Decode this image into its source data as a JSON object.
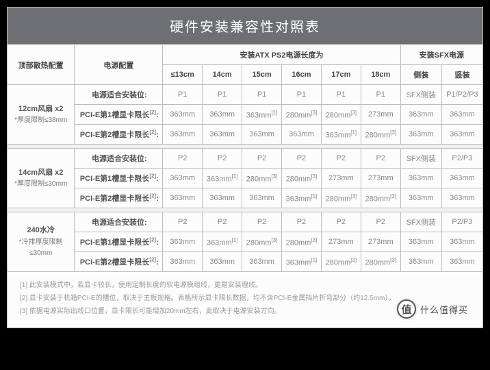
{
  "title": "硬件安装兼容性对照表",
  "headers": {
    "top_config": "顶部散热配置",
    "psu_config": "电源配置",
    "atx_group": "安装ATX PS2电源长度为",
    "sfx_group": "安装SFX电源",
    "atx_cols": [
      "≤13cm",
      "14cm",
      "15cm",
      "16cm",
      "17cm",
      "18cm"
    ],
    "sfx_cols": [
      "侧装",
      "竖装"
    ]
  },
  "row_labels": {
    "psu_fit": "电源适合安装位:",
    "pcie1": "PCI-E第1槽显卡限长",
    "pcie2": "PCI-E第2槽显卡限长",
    "note2": "[2]",
    "colon": ":"
  },
  "sections": [
    {
      "head_main": "12cm风扇 x2",
      "head_sub": "*厚度限制≤38mm",
      "psu_fit": [
        "P1",
        "P1",
        "P1",
        "P1",
        "P1",
        "P1",
        "SFX侧装",
        "P1/P2/P3"
      ],
      "pcie1": [
        [
          "363mm",
          ""
        ],
        [
          "363mm",
          ""
        ],
        [
          "363mm",
          "[1]"
        ],
        [
          "280mm",
          "[3]"
        ],
        [
          "280mm",
          "[3]"
        ],
        [
          "273mm",
          ""
        ],
        [
          "363mm",
          ""
        ],
        [
          "363mm",
          ""
        ]
      ],
      "pcie2": [
        [
          "363mm",
          ""
        ],
        [
          "363mm",
          ""
        ],
        [
          "363mm",
          ""
        ],
        [
          "363mm",
          ""
        ],
        [
          "363mm",
          "[1]"
        ],
        [
          "280mm",
          "[3]"
        ],
        [
          "363mm",
          ""
        ],
        [
          "363mm",
          ""
        ]
      ]
    },
    {
      "head_main": "14cm风扇 x2",
      "head_sub": "*厚度限制≤30mm",
      "psu_fit": [
        "P2",
        "P2",
        "P2",
        "P2",
        "P2",
        "P2",
        "SFX侧装",
        "P2/P3"
      ],
      "pcie1": [
        [
          "363mm",
          ""
        ],
        [
          "363mm",
          "[1]"
        ],
        [
          "280mm",
          "[3]"
        ],
        [
          "280mm",
          "[3]"
        ],
        [
          "273mm",
          ""
        ],
        [
          "273mm",
          ""
        ],
        [
          "363mm",
          ""
        ],
        [
          "363mm",
          ""
        ]
      ],
      "pcie2": [
        [
          "363mm",
          ""
        ],
        [
          "363mm",
          ""
        ],
        [
          "363mm",
          ""
        ],
        [
          "363mm",
          "[1]"
        ],
        [
          "280mm",
          "[3]"
        ],
        [
          "280mm",
          "[3]"
        ],
        [
          "363mm",
          ""
        ],
        [
          "363mm",
          ""
        ]
      ]
    },
    {
      "head_main": "240水冷",
      "head_sub": "*冷排厚度限制≤30mm",
      "psu_fit": [
        "P2",
        "P2",
        "P2",
        "P2",
        "P2",
        "P2",
        "SFX侧装",
        "P2/P3"
      ],
      "pcie1": [
        [
          "363mm",
          ""
        ],
        [
          "363mm",
          "[1]"
        ],
        [
          "280mm",
          "[3]"
        ],
        [
          "280mm",
          "[3]"
        ],
        [
          "273mm",
          ""
        ],
        [
          "273mm",
          ""
        ],
        [
          "363mm",
          ""
        ],
        [
          "363mm",
          ""
        ]
      ],
      "pcie2": [
        [
          "363mm",
          ""
        ],
        [
          "363mm",
          ""
        ],
        [
          "363mm",
          ""
        ],
        [
          "363mm",
          "[1]"
        ],
        [
          "280mm",
          "[3]"
        ],
        [
          "280mm",
          "[3]"
        ],
        [
          "363mm",
          ""
        ],
        [
          "363mm",
          ""
        ]
      ]
    }
  ],
  "footnotes": [
    "[1] 此安装模式中，若显卡较长，使用定制长度的软电源模组线，更易安装理线。",
    "[2] 显卡安装于机箱PCI-E的槽位，取决于主板规格。表格所示显卡限长数据，均不含PCI-E金属挡片折弯部分（约12.5mm）。",
    "[3] 依据电源实际出线口位置，显卡限长可能增加20mm左右，此取决于电源安装方向。"
  ],
  "watermark": {
    "icon": "值",
    "text": "什么值得买"
  },
  "style": {
    "title_bg": "#6d6f72",
    "title_color": "#ffffff",
    "border_color": "#bdbdbd",
    "cell_bg": "#fcfcfc",
    "text_color": "#555555",
    "muted_color": "#888888",
    "gap_bg": "#f1f1f1",
    "title_fontsize": 20,
    "cell_fontsize": 11,
    "footnote_fontsize": 10
  }
}
